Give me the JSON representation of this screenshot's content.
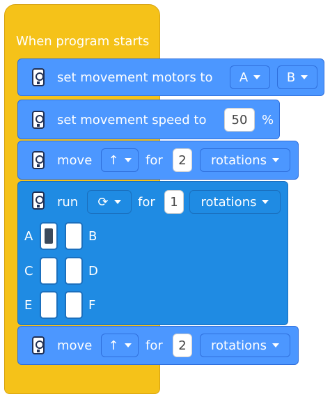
{
  "hat": {
    "title": "When program starts"
  },
  "blocks": {
    "set_motors": {
      "label": "set movement motors to",
      "motor1": "A",
      "motor2": "B"
    },
    "set_speed": {
      "label": "set movement speed to",
      "value": "50",
      "unit": "%"
    },
    "move1": {
      "label": "move",
      "direction": "↑",
      "for": "for",
      "amount": "2",
      "unit": "rotations"
    },
    "run": {
      "label": "run",
      "direction": "⟳",
      "for": "for",
      "amount": "1",
      "unit": "rotations",
      "ports": {
        "a": "A",
        "b": "B",
        "c": "C",
        "d": "D",
        "e": "E",
        "f": "F"
      }
    },
    "move2": {
      "label": "move",
      "direction": "↑",
      "for": "for",
      "amount": "2",
      "unit": "rotations"
    }
  },
  "icons": {
    "block_icon": "motor-icon",
    "caret": "caret-down-icon"
  },
  "colors": {
    "hat": "#f5c219",
    "motion": "#4c97ff",
    "run": "#1f8be3",
    "highlight": "#c94fd7"
  }
}
